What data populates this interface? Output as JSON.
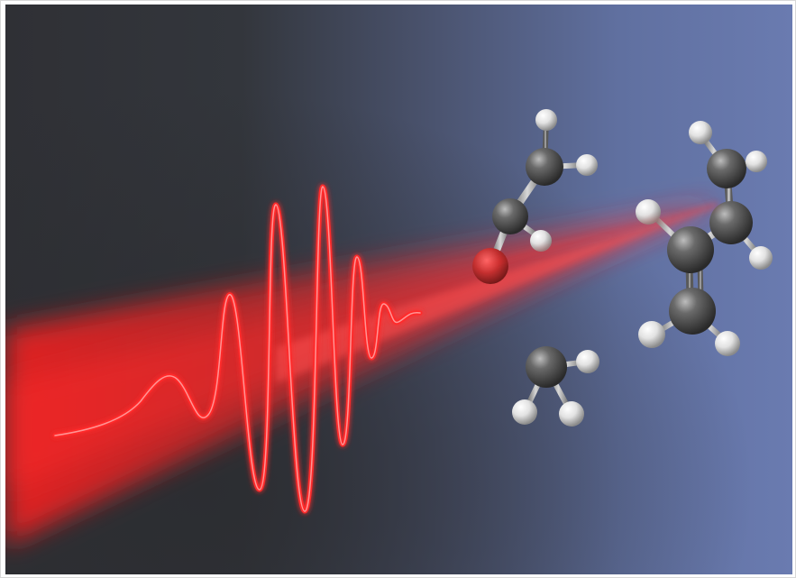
{
  "image": {
    "subject": "laser-pulse-molecules",
    "colors": {
      "dark": "#2e3136",
      "blue": "#6677aa",
      "laser": "#ff2a2a",
      "carbon": "#4a4a4a",
      "hydrogen": "#f2f2f2"
    },
    "molecules": [
      "molecule-vinyl",
      "molecule-propene",
      "molecule-methyl"
    ]
  }
}
